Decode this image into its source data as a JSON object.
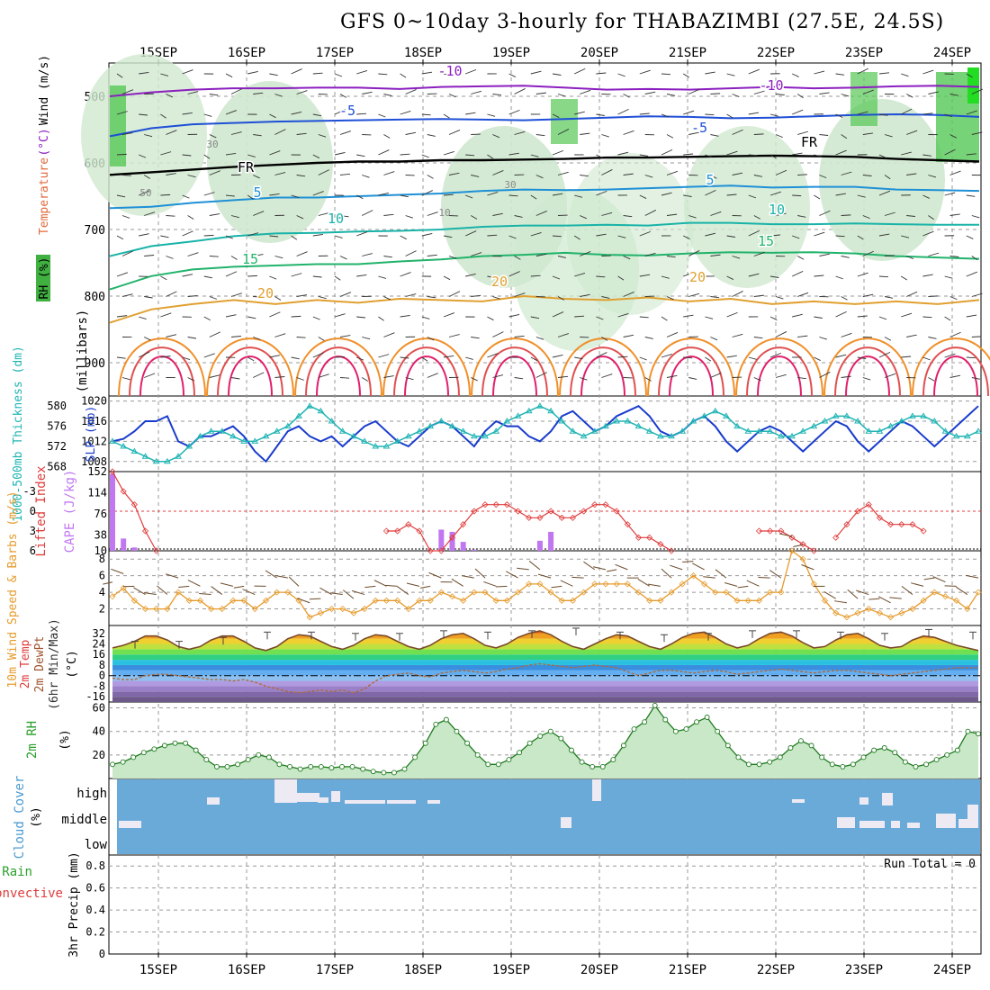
{
  "title": "GFS 0~10day 3-hourly for THABAZIMBI (27.5E, 24.5S)",
  "date_labels": [
    "15SEP",
    "16SEP",
    "17SEP",
    "18SEP",
    "19SEP",
    "20SEP",
    "21SEP",
    "22SEP",
    "23SEP",
    "24SEP"
  ],
  "colors": {
    "frame": "#000000",
    "grid": "#999999",
    "slp": "#1a3ccc",
    "thickness": "#20b4b4",
    "lifted": "#e03c3c",
    "cape": "#c077f0",
    "wind": "#e69b2c",
    "barb": "#6b4a2a",
    "rh": "#2aa02a",
    "cloud": "#6aaad8",
    "cloud_gap": "#eeeaf4",
    "temp_minus10": "#8b1fbf",
    "temp_minus5": "#1e4fd6",
    "temp_fr": "#000000",
    "temp_5": "#1e90d6",
    "temp_10": "#19b3a8",
    "temp_15": "#21b36b",
    "temp_20": "#e0a030"
  },
  "chart_data": [
    {
      "id": "upper_air",
      "type": "contour",
      "ylabel_parts": [
        "RH (%)",
        "Temperature",
        " (°C)",
        "Wind (m/s)"
      ],
      "ylabel_units": "(millibars)",
      "yticks": [
        500,
        600,
        700,
        800,
        900
      ],
      "ylim": [
        450,
        950
      ],
      "contour_labels": [
        {
          "id": "m10a",
          "text": "-10",
          "series": "temp_minus10"
        },
        {
          "id": "m10b",
          "text": "-10",
          "series": "temp_minus10"
        },
        {
          "id": "m5a",
          "text": "-5",
          "series": "temp_minus5"
        },
        {
          "id": "m5b",
          "text": "-5",
          "series": "temp_minus5"
        },
        {
          "id": "fra",
          "text": "FR",
          "series": "temp_fr"
        },
        {
          "id": "frb",
          "text": "FR",
          "series": "temp_fr"
        },
        {
          "id": "p5a",
          "text": "5",
          "series": "temp_5"
        },
        {
          "id": "p5b",
          "text": "5",
          "series": "temp_5"
        },
        {
          "id": "p10a",
          "text": "10",
          "series": "temp_10"
        },
        {
          "id": "p10b",
          "text": "10",
          "series": "temp_10"
        },
        {
          "id": "p15a",
          "text": "15",
          "series": "temp_15"
        },
        {
          "id": "p15b",
          "text": "15",
          "series": "temp_15"
        },
        {
          "id": "p20a",
          "text": "20",
          "series": "temp_20"
        },
        {
          "id": "p20b",
          "text": "20",
          "series": "temp_20"
        },
        {
          "id": "p20c",
          "text": "20",
          "series": "temp_20"
        },
        {
          "id": "rh30a",
          "text": "30",
          "series": "rh"
        },
        {
          "id": "rh30b",
          "text": "30",
          "series": "rh"
        },
        {
          "id": "rh50",
          "text": "50",
          "series": "rh"
        },
        {
          "id": "rh10",
          "text": "10",
          "series": "rh"
        }
      ],
      "isotherms": [
        {
          "name": "-10",
          "level": [
            500,
            494,
            490,
            488,
            488,
            487,
            487,
            489,
            486,
            485,
            484,
            487,
            490,
            489,
            490,
            488,
            486,
            488,
            487,
            485,
            484,
            486
          ]
        },
        {
          "name": "-5",
          "level": [
            560,
            548,
            542,
            540,
            538,
            537,
            536,
            535,
            534,
            535,
            536,
            534,
            532,
            530,
            531,
            533,
            532,
            530,
            528,
            527,
            528,
            531
          ]
        },
        {
          "name": "FR",
          "level": [
            618,
            614,
            610,
            606,
            603,
            600,
            598,
            598,
            596,
            596,
            595,
            594,
            592,
            592,
            591,
            590,
            589,
            590,
            591,
            594,
            596,
            598
          ]
        },
        {
          "name": "5",
          "level": [
            668,
            666,
            660,
            656,
            652,
            652,
            650,
            648,
            646,
            642,
            640,
            641,
            640,
            638,
            636,
            634,
            637,
            636,
            636,
            640,
            641,
            642
          ]
        },
        {
          "name": "10",
          "level": [
            740,
            725,
            718,
            710,
            706,
            705,
            703,
            702,
            700,
            696,
            694,
            694,
            693,
            694,
            690,
            690,
            692,
            692,
            691,
            692,
            693,
            693
          ]
        },
        {
          "name": "15",
          "level": [
            790,
            770,
            760,
            756,
            754,
            752,
            752,
            748,
            745,
            740,
            738,
            735,
            738,
            739,
            736,
            734,
            735,
            734,
            736,
            740,
            742,
            744
          ]
        },
        {
          "name": "20",
          "level": [
            840,
            820,
            812,
            806,
            812,
            806,
            810,
            804,
            806,
            808,
            800,
            804,
            806,
            802,
            808,
            804,
            812,
            808,
            812,
            808,
            812,
            806
          ]
        }
      ]
    },
    {
      "id": "slp_thickness",
      "type": "line",
      "ylabel_left": "1000-500mb Thickness (dm)",
      "ylabel_right": "SLP (mb)",
      "yticks_left": [
        568,
        572,
        576,
        580
      ],
      "yticks_right": [
        1008,
        1012,
        1016,
        1020
      ],
      "ylim_right": [
        1006,
        1021
      ],
      "ylim_left": [
        567,
        582
      ],
      "series": [
        {
          "name": "SLP",
          "values": [
            1012,
            1012.5,
            1014,
            1016,
            1016,
            1017,
            1012,
            1011,
            1013,
            1013,
            1014,
            1015,
            1013,
            1010,
            1008,
            1011,
            1014,
            1015,
            1013,
            1012,
            1013,
            1011,
            1013,
            1015,
            1016,
            1014,
            1012,
            1011,
            1013,
            1015,
            1016,
            1015,
            1013,
            1011,
            1014,
            1016,
            1015,
            1015,
            1013,
            1012,
            1014,
            1017,
            1018,
            1016,
            1014,
            1015,
            1017,
            1018,
            1019,
            1017,
            1014,
            1013,
            1014,
            1016,
            1017,
            1015,
            1012,
            1010,
            1012,
            1014,
            1015,
            1014,
            1012,
            1010,
            1012,
            1014,
            1016,
            1015,
            1012,
            1010,
            1012,
            1014,
            1016,
            1015,
            1013,
            1011,
            1013,
            1015,
            1017,
            1019
          ]
        },
        {
          "name": "Thickness",
          "values": [
            573,
            572,
            571,
            570,
            569,
            569,
            570,
            572,
            574,
            575,
            575,
            574,
            573,
            573,
            574,
            575,
            576,
            578,
            580,
            579,
            577,
            575,
            574,
            573,
            572,
            572,
            573,
            574,
            575,
            576,
            577,
            576,
            575,
            574,
            574,
            575,
            577,
            578,
            579,
            580,
            579,
            577,
            575,
            574,
            575,
            576,
            577,
            577,
            576,
            575,
            574,
            574,
            575,
            577,
            578,
            579,
            578,
            576,
            575,
            575,
            575,
            574,
            574,
            575,
            576,
            577,
            578,
            578,
            577,
            575,
            575,
            576,
            577,
            578,
            578,
            577,
            575,
            574,
            574,
            575
          ]
        }
      ]
    },
    {
      "id": "instability",
      "type": "bar+line",
      "ylabel_left": "Lifted Index",
      "ylabel_right": "CAPE (J/kg)",
      "yticks_left": [
        -3,
        0,
        3,
        6
      ],
      "yticks_right": [
        10,
        38,
        76,
        114,
        152
      ],
      "series": [
        {
          "name": "Lifted Index",
          "values": [
            -6,
            -3,
            -1,
            3,
            6,
            null,
            null,
            null,
            null,
            null,
            null,
            null,
            null,
            null,
            null,
            null,
            null,
            null,
            null,
            null,
            null,
            null,
            null,
            null,
            null,
            3,
            3,
            2,
            3,
            6,
            6,
            4,
            2,
            0,
            -1,
            -1,
            -1,
            0,
            1,
            1,
            0,
            1,
            1,
            0,
            -1,
            -1,
            0,
            2,
            4,
            4,
            5,
            6,
            null,
            null,
            null,
            null,
            null,
            null,
            null,
            3,
            3,
            3,
            4,
            5,
            6,
            null,
            4,
            2,
            0,
            -1,
            1,
            2,
            2,
            2,
            3
          ]
        },
        {
          "name": "CAPE",
          "values": [
            148,
            32,
            16,
            4,
            0,
            0,
            0,
            0,
            0,
            0,
            0,
            0,
            0,
            0,
            0,
            0,
            0,
            0,
            0,
            0,
            0,
            0,
            0,
            0,
            0,
            0,
            0,
            0,
            0,
            0,
            48,
            44,
            26,
            12,
            8,
            8,
            4,
            0,
            0,
            28,
            44,
            0,
            0,
            0,
            0,
            0,
            0,
            0,
            0,
            0,
            0,
            0,
            0,
            0,
            0,
            0,
            0,
            0,
            0,
            0,
            0,
            0,
            0,
            0,
            0,
            0,
            0,
            0,
            0,
            0,
            0,
            0,
            0,
            0,
            0,
            0,
            0,
            0,
            0,
            0
          ]
        }
      ],
      "ylim_left": [
        6,
        -6
      ],
      "ylim_right": [
        10,
        152
      ]
    },
    {
      "id": "wind10m",
      "type": "line",
      "ylabel": "10m Wind Speed & Barbs (m/s)",
      "yticks": [
        2,
        4,
        6,
        8
      ],
      "ylim": [
        0,
        9
      ],
      "values": [
        3.5,
        4.5,
        3,
        2,
        2,
        2,
        4,
        3,
        3,
        2,
        2,
        3,
        3,
        2,
        3,
        4,
        4,
        3,
        1,
        1.5,
        2,
        2,
        1.5,
        2,
        3,
        3,
        3,
        2,
        3,
        3,
        4,
        3.5,
        3,
        4,
        4,
        3,
        3,
        4,
        5,
        5,
        4,
        3,
        3,
        4,
        5,
        5,
        5,
        5,
        4,
        3,
        3,
        4,
        5,
        6,
        5,
        4,
        4,
        3,
        3,
        3,
        4,
        4,
        9,
        8,
        5,
        3,
        1.5,
        1,
        1.5,
        2,
        1.5,
        1,
        1.5,
        2,
        3,
        4,
        3.5,
        3,
        2,
        4
      ]
    },
    {
      "id": "temp2m",
      "type": "area",
      "ylabel": "2m Temp 2m DewPt (6hr Min/Max) (°C)",
      "yticks": [
        -16,
        -8,
        0,
        8,
        16,
        24,
        32
      ],
      "ylim": [
        -20,
        38
      ],
      "temp": [
        21,
        23,
        26,
        30,
        30,
        27,
        22,
        20,
        22,
        27,
        30,
        30,
        26,
        21,
        19,
        22,
        28,
        31,
        30,
        26,
        22,
        20,
        23,
        28,
        31,
        30,
        26,
        22,
        20,
        23,
        28,
        31,
        32,
        28,
        23,
        21,
        24,
        29,
        32,
        34,
        31,
        26,
        22,
        20,
        24,
        28,
        31,
        30,
        26,
        22,
        20,
        24,
        29,
        32,
        33,
        29,
        24,
        21,
        23,
        28,
        32,
        33,
        30,
        25,
        21,
        22,
        27,
        31,
        32,
        28,
        23,
        21,
        22,
        27,
        30,
        29,
        26,
        23,
        21,
        19
      ],
      "dewpoint": [
        -2,
        -3,
        -3,
        0,
        1,
        1,
        0,
        -1,
        -2,
        -3,
        -3,
        -4,
        -3,
        -5,
        -8,
        -10,
        -12,
        -13,
        -12,
        -11,
        -12,
        -11,
        -13,
        -10,
        -4,
        0,
        1,
        2,
        0,
        -1,
        2,
        3,
        4,
        3,
        2,
        3,
        5,
        6,
        8,
        9,
        8,
        7,
        6,
        7,
        8,
        7,
        6,
        3,
        0,
        2,
        4,
        4,
        3,
        2,
        3,
        4,
        3,
        1,
        2,
        3,
        4,
        5,
        4,
        3,
        2,
        3,
        4,
        4,
        3,
        2,
        1,
        0,
        1,
        2,
        3,
        4,
        5,
        6,
        6,
        6
      ],
      "max_marks": [
        26,
        26,
        29,
        33,
        33,
        32,
        32,
        34,
        33,
        34,
        36,
        33,
        31,
        32,
        34,
        34,
        33,
        32,
        35,
        33
      ]
    },
    {
      "id": "rh2m",
      "type": "area",
      "ylabel": "2m RH (%)",
      "yticks": [
        20,
        40,
        60
      ],
      "ylim": [
        0,
        65
      ],
      "values": [
        12,
        14,
        18,
        22,
        25,
        28,
        30,
        30,
        24,
        16,
        10,
        10,
        12,
        16,
        20,
        18,
        12,
        10,
        8,
        10,
        10,
        9,
        10,
        10,
        8,
        6,
        5,
        5,
        8,
        18,
        30,
        46,
        50,
        40,
        30,
        20,
        12,
        12,
        16,
        22,
        30,
        36,
        40,
        34,
        24,
        14,
        10,
        10,
        16,
        28,
        42,
        48,
        62,
        50,
        40,
        42,
        48,
        52,
        40,
        28,
        18,
        12,
        12,
        14,
        18,
        26,
        32,
        28,
        18,
        12,
        10,
        12,
        18,
        24,
        26,
        22,
        14,
        10,
        12,
        16,
        20,
        24,
        40,
        38
      ]
    },
    {
      "id": "cloud",
      "type": "heatmap",
      "ylabel": "Cloud Cover (%)",
      "ytick_labels": [
        "high",
        "middle",
        "low"
      ]
    },
    {
      "id": "precip",
      "type": "bar",
      "ylabel": "3hr Precip (mm)",
      "ylabel_left_parts": [
        "Total / Rain",
        "Convective"
      ],
      "run_total_label": "Run Total = 0",
      "yticks": [
        0,
        0.2,
        0.4,
        0.6,
        0.8
      ],
      "ylim": [
        0,
        0.9
      ],
      "values": []
    }
  ]
}
